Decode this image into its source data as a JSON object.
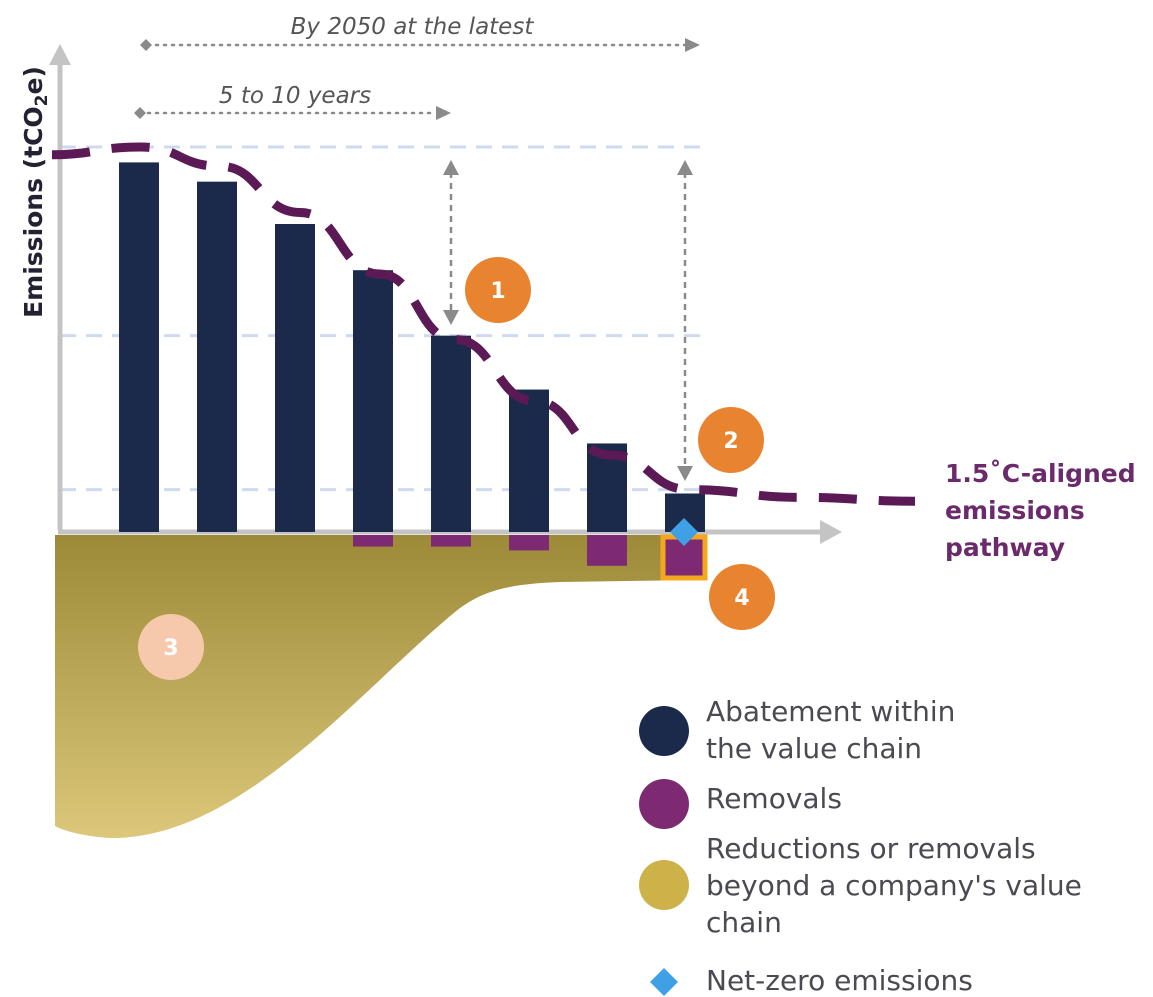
{
  "chart_data": {
    "type": "bar",
    "ylabel": "Emissions (tCO",
    "ylabel_sub": "2",
    "ylabel_end": "e)",
    "ylim": [
      -10,
      10
    ],
    "grid": "dashed reference lines at baseline, interim and final target levels",
    "series": [
      {
        "name": "Abatement within the value chain",
        "color": "#1b2a4a",
        "values": [
          9.6,
          9.1,
          8.0,
          6.8,
          5.1,
          3.7,
          2.3,
          1.0
        ]
      },
      {
        "name": "Removals",
        "color": "#7e2a72",
        "values": [
          0,
          0,
          0,
          -0.3,
          -0.3,
          -0.4,
          -0.8,
          -1.1
        ]
      }
    ],
    "pathway": {
      "label_line1": "1.5˚C-aligned",
      "label_line2": "emissions",
      "label_line3": "pathway",
      "color": "#5b1a55",
      "values": [
        9.8,
        10.0,
        9.5,
        8.3,
        6.7,
        5.0,
        3.4,
        2.0,
        1.1,
        0.9,
        0.8
      ]
    },
    "beyond_value_chain": {
      "name": "Reductions or removals beyond a company's value chain",
      "color_top": "#9c8a38",
      "color_bottom": "#dcc77a"
    },
    "net_zero_marker": {
      "name": "Net-zero emissions",
      "color": "#3fa0e6"
    },
    "annotations": {
      "timeline_long": "By 2050 at the latest",
      "timeline_short": "5 to 10 years"
    },
    "badges": [
      {
        "label": "1",
        "color": "#e88330"
      },
      {
        "label": "2",
        "color": "#e88330"
      },
      {
        "label": "3",
        "color": "#f6c9ad"
      },
      {
        "label": "4",
        "color": "#e88330"
      }
    ],
    "legend": [
      {
        "line1": "Abatement within",
        "line2": "the value chain",
        "line3": "",
        "color": "#1b2a4a",
        "shape": "circle"
      },
      {
        "line1": "Removals",
        "line2": "",
        "line3": "",
        "color": "#7e2a72",
        "shape": "circle"
      },
      {
        "line1": "Reductions or removals",
        "line2": "beyond a company's value",
        "line3": "chain",
        "color": "#cdb24a",
        "shape": "circle"
      },
      {
        "line1": "Net-zero emissions",
        "line2": "",
        "line3": "",
        "color": "#3fa0e6",
        "shape": "diamond"
      }
    ]
  }
}
